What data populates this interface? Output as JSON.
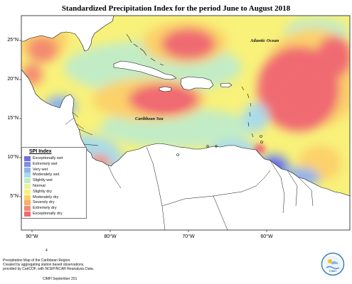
{
  "title": "Standardized Precipitation Index for the period June to August 2018",
  "latitude_labels": [
    "25°N",
    "20°N",
    "15°N",
    "10°N",
    "5°N"
  ],
  "longitude_labels": [
    "90°W",
    "80°W",
    "70°W",
    "60°W"
  ],
  "sea_labels": {
    "atlantic": "Atlantic Ocean",
    "caribbean": "Caribbean Sea"
  },
  "legend": {
    "title": "SPI Index",
    "items": [
      {
        "label": "Exceptionally wet",
        "color": "#6f6fdc"
      },
      {
        "label": "Extremely wet",
        "color": "#7e8fe4"
      },
      {
        "label": "Very wet",
        "color": "#8fb4ec"
      },
      {
        "label": "Moderately wet",
        "color": "#a9dbe9"
      },
      {
        "label": "Slightly wet",
        "color": "#c2ecc5"
      },
      {
        "label": "Normal",
        "color": "#e9f2a6"
      },
      {
        "label": "Slightly dry",
        "color": "#f8f17a"
      },
      {
        "label": "Moderately dry",
        "color": "#fbd16a"
      },
      {
        "label": "Severely dry",
        "color": "#f8ad6a"
      },
      {
        "label": "Extremely dry",
        "color": "#f58a6f"
      },
      {
        "label": "Exceptionally dry",
        "color": "#f06a72"
      }
    ]
  },
  "footer": {
    "page_mark": "4",
    "lines": [
      "Precipitation Map of the Caribbean Region.",
      "Created by aggregating station based observations,",
      "provided by CariCOF, with NCEP/NCAR Reanalysis Data."
    ],
    "credit": "CIMH September 201"
  },
  "logo_text": "CIMH",
  "colors": {
    "land": "#ffffff",
    "coast": "#111111",
    "frame": "#444444"
  }
}
